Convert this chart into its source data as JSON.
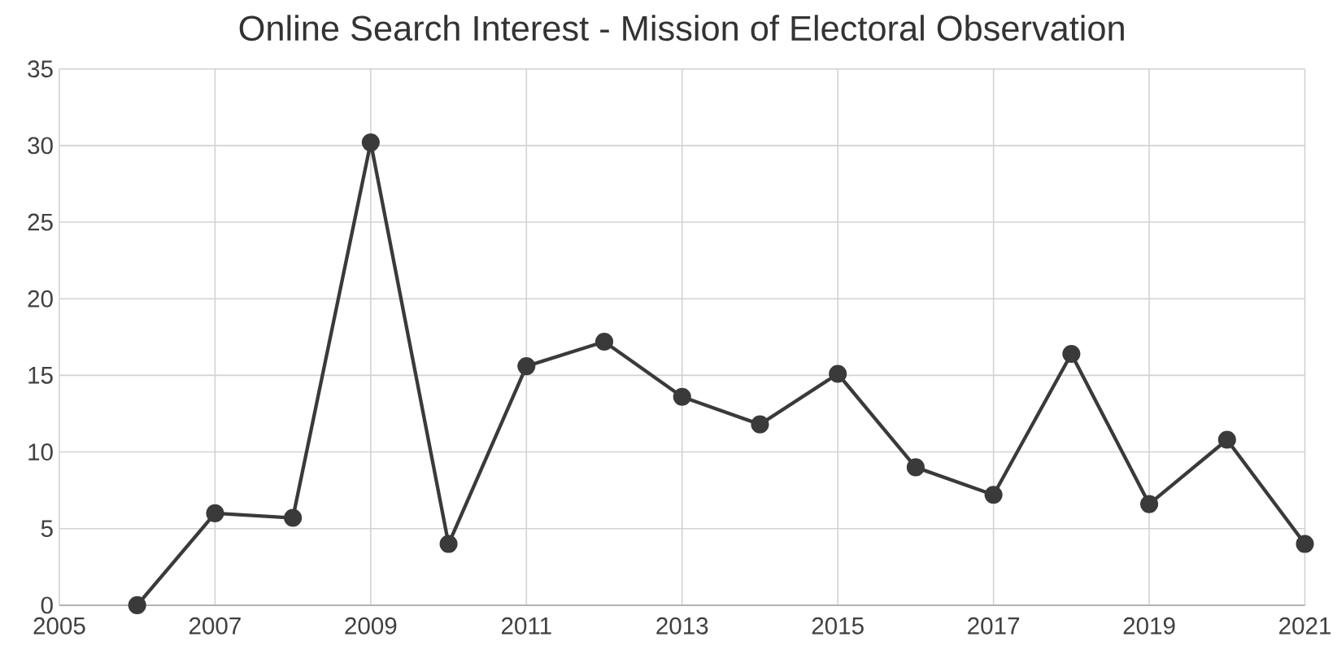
{
  "chart_data": {
    "type": "line",
    "title": "Online Search Interest - Mission of Electoral Observation",
    "x": [
      2006,
      2007,
      2008,
      2009,
      2010,
      2011,
      2012,
      2013,
      2014,
      2015,
      2016,
      2017,
      2018,
      2019,
      2020,
      2021
    ],
    "series": [
      {
        "color": "#3a3a3a",
        "values": [
          0,
          6,
          5.7,
          30.2,
          4,
          15.6,
          17.2,
          13.6,
          11.8,
          15.1,
          9,
          7.2,
          16.4,
          6.6,
          10.8,
          4
        ]
      }
    ],
    "xlim": [
      2005,
      2021
    ],
    "xticks": [
      2005,
      2007,
      2009,
      2011,
      2013,
      2015,
      2017,
      2019,
      2021
    ],
    "ylim": [
      0,
      35
    ],
    "yticks": [
      0,
      5,
      10,
      15,
      20,
      25,
      30,
      35
    ],
    "grid": true,
    "marker": "circle",
    "line_style": "solid"
  }
}
